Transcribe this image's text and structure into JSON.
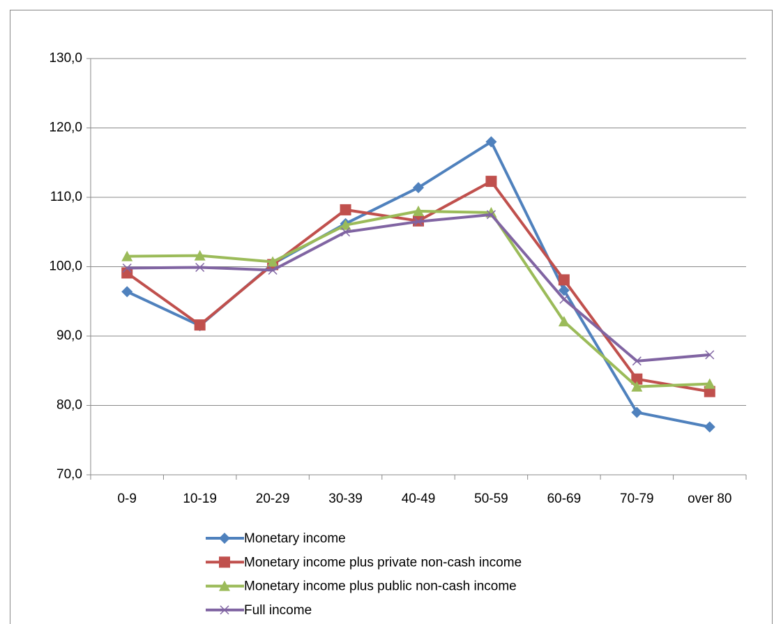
{
  "chart_data": {
    "type": "line",
    "categories": [
      "0-9",
      "10-19",
      "20-29",
      "30-39",
      "40-49",
      "50-59",
      "60-69",
      "70-79",
      "over 80"
    ],
    "series": [
      {
        "name": "Monetary income",
        "color": "#4f81bd",
        "marker": "diamond",
        "values": [
          96.4,
          91.5,
          100.4,
          106.2,
          111.4,
          118.0,
          96.6,
          79.0,
          76.9
        ]
      },
      {
        "name": "Monetary income plus private non-cash income",
        "color": "#c0504d",
        "marker": "square",
        "values": [
          99.1,
          91.6,
          100.3,
          108.2,
          106.6,
          112.3,
          98.1,
          83.8,
          82.0
        ]
      },
      {
        "name": "Monetary income plus public non-cash income",
        "color": "#9bbb59",
        "marker": "triangle",
        "values": [
          101.5,
          101.6,
          100.7,
          106.0,
          108.0,
          107.8,
          92.1,
          82.7,
          83.1
        ]
      },
      {
        "name": "Full income",
        "color": "#8064a2",
        "marker": "x",
        "values": [
          99.8,
          99.9,
          99.5,
          105.0,
          106.5,
          107.5,
          95.3,
          86.4,
          87.3
        ]
      }
    ],
    "ylim": [
      70,
      130
    ],
    "yticks": [
      {
        "value": 70,
        "label": "70,0"
      },
      {
        "value": 80,
        "label": "80,0"
      },
      {
        "value": 90,
        "label": "90,0"
      },
      {
        "value": 100,
        "label": "100,0"
      },
      {
        "value": 110,
        "label": "110,0"
      },
      {
        "value": 120,
        "label": "120,0"
      },
      {
        "value": 130,
        "label": "130,0"
      }
    ],
    "grid": true,
    "legend": "bottom"
  }
}
